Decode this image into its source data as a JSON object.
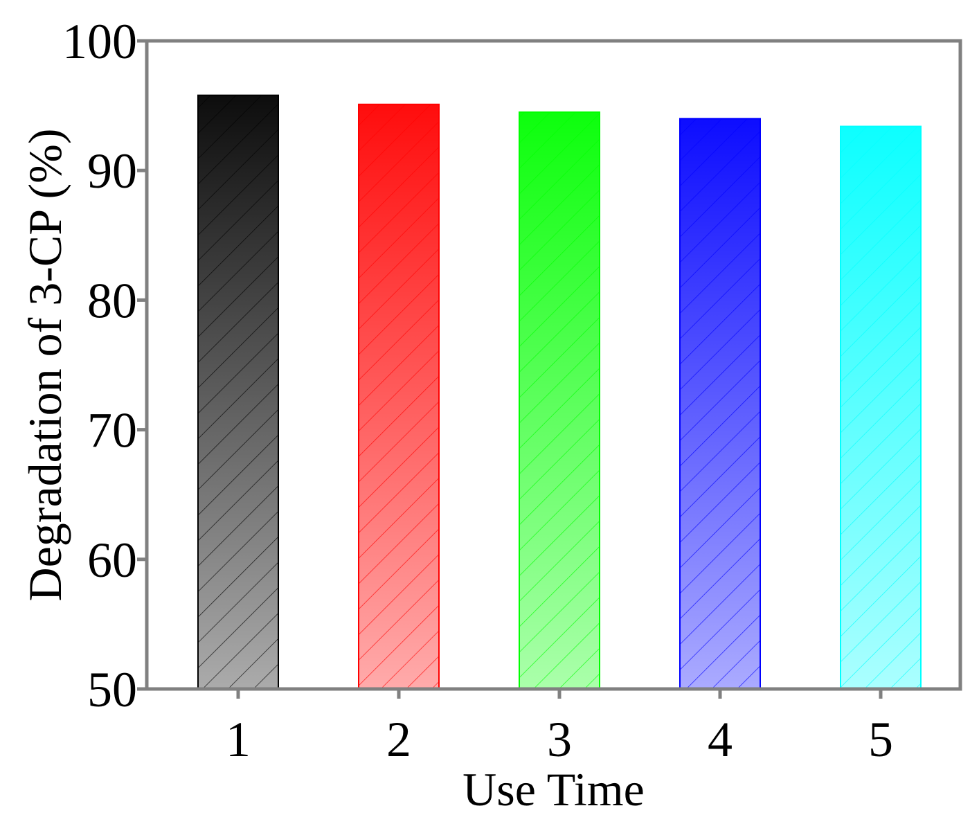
{
  "chart_data": {
    "type": "bar",
    "title": "",
    "xlabel": "Use Time",
    "ylabel": "Degradation of 3-CP (%)",
    "categories": [
      "1",
      "2",
      "3",
      "4",
      "5"
    ],
    "values": [
      95.8,
      95.1,
      94.5,
      94.0,
      93.4
    ],
    "ylim": [
      50,
      100
    ],
    "yticks": [
      "50",
      "60",
      "70",
      "80",
      "90",
      "100"
    ],
    "bar_colors": [
      "#000000",
      "#ff0000",
      "#00ff00",
      "#0000ff",
      "#00ffff"
    ],
    "fill": "vertical gradient with diagonal hatching",
    "grid": false,
    "legend": "none"
  }
}
